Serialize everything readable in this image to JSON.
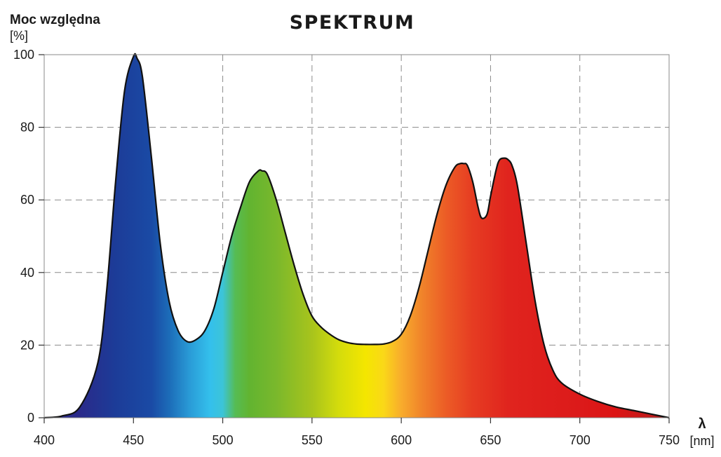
{
  "chart_data": {
    "type": "area",
    "title": "SPEKTRUM",
    "ylabel": "Moc względna",
    "yunit": "[%]",
    "xlabel": "λ",
    "xunit": "[nm]",
    "xlim": [
      400,
      750
    ],
    "ylim": [
      0,
      100
    ],
    "xticks": [
      "400",
      "450",
      "500",
      "550",
      "600",
      "650",
      "700",
      "750"
    ],
    "yticks": [
      "0",
      "20",
      "40",
      "60",
      "80",
      "100"
    ],
    "grid": true,
    "x": [
      400,
      410,
      420,
      430,
      435,
      440,
      445,
      450,
      452,
      455,
      460,
      465,
      470,
      475,
      480,
      485,
      490,
      495,
      500,
      505,
      510,
      515,
      520,
      522,
      525,
      530,
      535,
      540,
      545,
      550,
      555,
      560,
      565,
      570,
      575,
      580,
      585,
      590,
      595,
      600,
      605,
      610,
      615,
      620,
      625,
      630,
      633,
      635,
      637,
      640,
      643,
      645,
      648,
      650,
      653,
      655,
      658,
      660,
      662,
      665,
      670,
      675,
      680,
      685,
      690,
      700,
      710,
      720,
      730,
      740,
      750
    ],
    "values": [
      0,
      0.5,
      3,
      15,
      35,
      65,
      90,
      99.5,
      99,
      94,
      72,
      48,
      32,
      24,
      21,
      21.5,
      24,
      30,
      40,
      50,
      58,
      65,
      68,
      68,
      67,
      60,
      51,
      42,
      34,
      28,
      25,
      23,
      21.5,
      20.7,
      20.3,
      20.2,
      20.2,
      20.3,
      21,
      23,
      28,
      36,
      46,
      56,
      64,
      69,
      70,
      70,
      69.5,
      65,
      58,
      55,
      56,
      61,
      68,
      71,
      71.5,
      71,
      69.5,
      64,
      48,
      32,
      20,
      13,
      9.5,
      6.5,
      4.5,
      3,
      2,
      1,
      0
    ],
    "gradient_stops": [
      {
        "wavelength": 420,
        "color": "#2a2a8a"
      },
      {
        "wavelength": 440,
        "color": "#1c3c98"
      },
      {
        "wavelength": 460,
        "color": "#1a4aa5"
      },
      {
        "wavelength": 470,
        "color": "#1c6cb8"
      },
      {
        "wavelength": 482,
        "color": "#2a9dd8"
      },
      {
        "wavelength": 493,
        "color": "#34c0ec"
      },
      {
        "wavelength": 500,
        "color": "#3cc4d8"
      },
      {
        "wavelength": 507,
        "color": "#56bc54"
      },
      {
        "wavelength": 515,
        "color": "#62b430"
      },
      {
        "wavelength": 530,
        "color": "#7ab82c"
      },
      {
        "wavelength": 550,
        "color": "#a8c41c"
      },
      {
        "wavelength": 565,
        "color": "#d4dc0c"
      },
      {
        "wavelength": 580,
        "color": "#f4e600"
      },
      {
        "wavelength": 590,
        "color": "#fad818"
      },
      {
        "wavelength": 600,
        "color": "#f8ac2c"
      },
      {
        "wavelength": 612,
        "color": "#f0822a"
      },
      {
        "wavelength": 625,
        "color": "#ec5c26"
      },
      {
        "wavelength": 640,
        "color": "#e63c22"
      },
      {
        "wavelength": 660,
        "color": "#e0241e"
      },
      {
        "wavelength": 700,
        "color": "#dc1a1a"
      },
      {
        "wavelength": 720,
        "color": "#dc1414"
      },
      {
        "wavelength": 750,
        "color": "#b41e1e"
      }
    ]
  }
}
